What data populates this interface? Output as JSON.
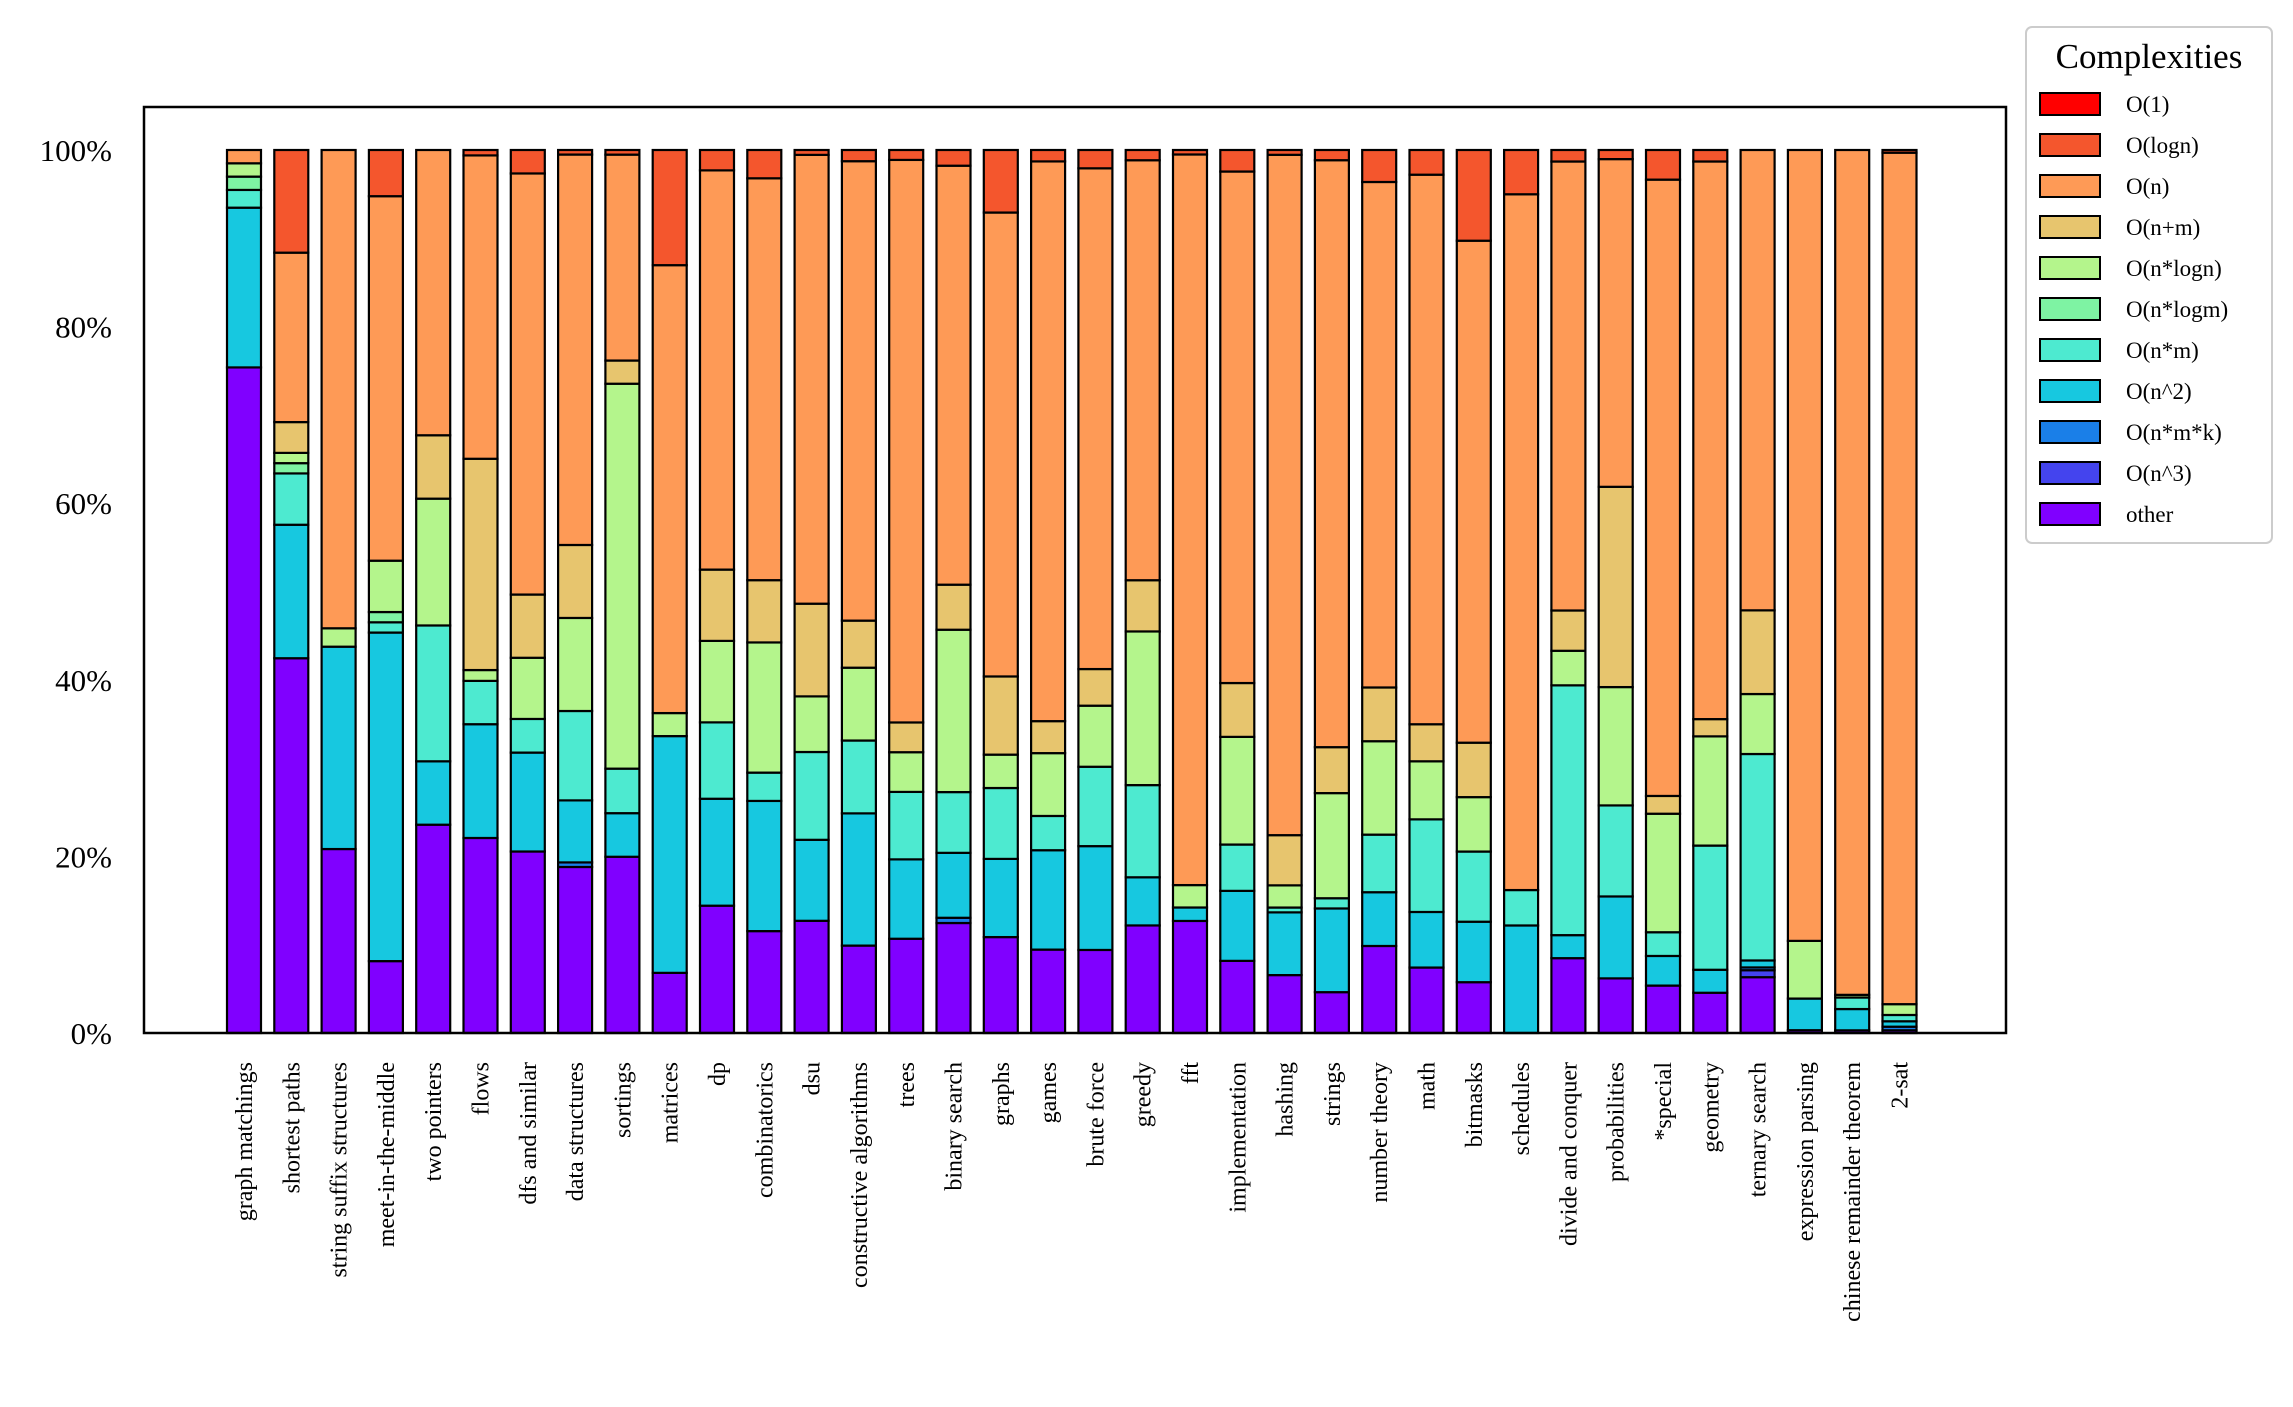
{
  "chart_data": {
    "type": "bar",
    "stacked": true,
    "normalized": true,
    "title": "",
    "xlabel": "",
    "ylabel": "",
    "ylim": [
      0,
      100
    ],
    "y_ticks": [
      "0%",
      "20%",
      "40%",
      "60%",
      "80%",
      "100%"
    ],
    "grid": false,
    "legend_title": "Complexities",
    "legend_position": "outside-top-right",
    "categories": [
      "graph matchings",
      "shortest paths",
      "string suffix structures",
      "meet-in-the-middle",
      "two pointers",
      "flows",
      "dfs and similar",
      "data structures",
      "sortings",
      "matrices",
      "dp",
      "combinatorics",
      "dsu",
      "constructive algorithms",
      "trees",
      "binary search",
      "graphs",
      "games",
      "brute force",
      "greedy",
      "fft",
      "implementation",
      "hashing",
      "strings",
      "number theory",
      "math",
      "bitmasks",
      "schedules",
      "divide and conquer",
      "probabilities",
      "*special",
      "geometry",
      "ternary search",
      "expression parsing",
      "chinese remainder theorem",
      "2-sat"
    ],
    "series": [
      {
        "name": "other",
        "color": "#8000ff",
        "values": [
          75,
          36.5,
          20,
          7,
          23,
          18,
          17.8,
          18.2,
          19,
          4.7,
          12.5,
          9,
          11.5,
          7.8,
          9.5,
          10.5,
          9.2,
          7.3,
          6.8,
          10.5,
          12.5,
          6.7,
          6,
          4,
          6.8,
          5.3,
          4.2,
          0,
          6.5,
          3,
          4,
          3.5,
          4,
          0.3,
          0.3,
          0.3
        ]
      },
      {
        "name": "O(n^3)",
        "color": "#4444ee",
        "values": [
          0,
          0,
          0,
          0,
          0,
          0,
          0,
          0,
          0,
          0,
          0,
          0,
          0,
          0,
          0,
          0,
          0,
          0,
          0,
          0,
          0,
          0,
          0,
          0,
          0,
          0,
          0,
          0,
          0,
          0,
          0,
          0,
          0.5,
          0,
          0,
          0
        ]
      },
      {
        "name": "O(n*m*k)",
        "color": "#1a7fe8",
        "values": [
          0,
          0,
          0,
          0,
          0,
          0,
          0,
          0.5,
          0,
          0,
          0,
          0,
          0,
          0,
          0,
          0.5,
          0,
          0,
          0,
          0,
          0,
          0,
          0,
          0,
          0,
          0,
          0,
          0,
          0,
          0,
          0,
          0,
          0.2,
          0,
          0,
          0.4
        ]
      },
      {
        "name": "O(n^2)",
        "color": "#17c8e0",
        "values": [
          18,
          13,
          22,
          32,
          7,
          10.5,
          9.7,
          6.8,
          4.7,
          18.5,
          10.5,
          11.5,
          8.3,
          11.8,
          8,
          6.2,
          7.5,
          8.7,
          8.5,
          4.7,
          1.5,
          6.5,
          6.5,
          8.2,
          4.2,
          4.5,
          5,
          8.5,
          2,
          4.5,
          2.5,
          2,
          0.5,
          3.4,
          2.4,
          0.6
        ]
      },
      {
        "name": "O(n*m)",
        "color": "#4dead0",
        "values": [
          2,
          5,
          0,
          1,
          15,
          4,
          3.3,
          9.8,
          4.8,
          0,
          7.5,
          2.5,
          9,
          6.5,
          6.8,
          5.8,
          6.8,
          3,
          6.5,
          9,
          0,
          4.3,
          0.5,
          1,
          4.5,
          7.5,
          5.8,
          2.8,
          21.7,
          5,
          2,
          10.8,
          14.8,
          0,
          1.3,
          0.7
        ]
      },
      {
        "name": "O(n*logm)",
        "color": "#7ef3a3",
        "values": [
          1.5,
          1,
          0,
          1,
          0,
          0,
          0,
          0,
          0,
          0,
          0,
          0,
          0,
          0,
          0,
          0,
          0,
          0,
          0,
          0,
          0,
          0,
          0,
          0,
          0,
          0,
          0,
          0,
          0,
          0,
          0,
          0,
          0,
          0,
          0,
          0
        ]
      },
      {
        "name": "O(n*logn)",
        "color": "#b4f58c",
        "values": [
          1.5,
          1,
          2,
          5,
          14,
          1,
          6,
          10.2,
          41.5,
          1.8,
          8,
          11.5,
          5.7,
          6.5,
          4,
          15.5,
          3.2,
          5.5,
          5,
          15,
          2.5,
          10,
          2.3,
          10.3,
          7.3,
          4.7,
          4.5,
          0,
          3,
          6.5,
          10,
          9.5,
          4.3,
          6.2,
          0.3,
          1.2
        ]
      },
      {
        "name": "O(n+m)",
        "color": "#e7c56e",
        "values": [
          0,
          3,
          0,
          0,
          7,
          19.5,
          6.2,
          8,
          2.5,
          0,
          7,
          5.5,
          9.5,
          4.2,
          3,
          4.3,
          7.5,
          2.8,
          3,
          5,
          0,
          5,
          5.2,
          4.5,
          4.2,
          3,
          4.5,
          0,
          3.5,
          11,
          1.5,
          1.5,
          6,
          0,
          0,
          0
        ]
      },
      {
        "name": "O(n)",
        "color": "#fe9a56",
        "values": [
          1.5,
          16.5,
          52,
          35.5,
          31.5,
          28,
          41.3,
          42.8,
          22.2,
          35,
          39.2,
          35.5,
          46,
          41,
          56.7,
          40,
          44.5,
          49,
          41,
          41,
          81.5,
          47.5,
          70.5,
          57.5,
          39.5,
          44.5,
          41.5,
          55,
          39,
          18,
          52,
          48.5,
          33,
          85,
          95.2,
          94.5
        ]
      },
      {
        "name": "O(logn)",
        "color": "#f4562d",
        "values": [
          0,
          10,
          0,
          4.5,
          0,
          0.5,
          2.3,
          0.5,
          0.5,
          9,
          2,
          2.5,
          0.5,
          1,
          1,
          1.5,
          6,
          1,
          1.5,
          1,
          0.5,
          2,
          0.5,
          1,
          2.5,
          2,
          7.5,
          3.5,
          1,
          0.5,
          2.5,
          1,
          0,
          0,
          0,
          0.3
        ]
      },
      {
        "name": "O(1)",
        "color": "#ff0000",
        "values": [
          0,
          0,
          0,
          0,
          0,
          0,
          0,
          0,
          0,
          0,
          0,
          0,
          0,
          0,
          0,
          0,
          0,
          0,
          0,
          0,
          0,
          0,
          0,
          0,
          0,
          0,
          0,
          0,
          0,
          0,
          0,
          0,
          0,
          0,
          0,
          0
        ]
      }
    ]
  }
}
